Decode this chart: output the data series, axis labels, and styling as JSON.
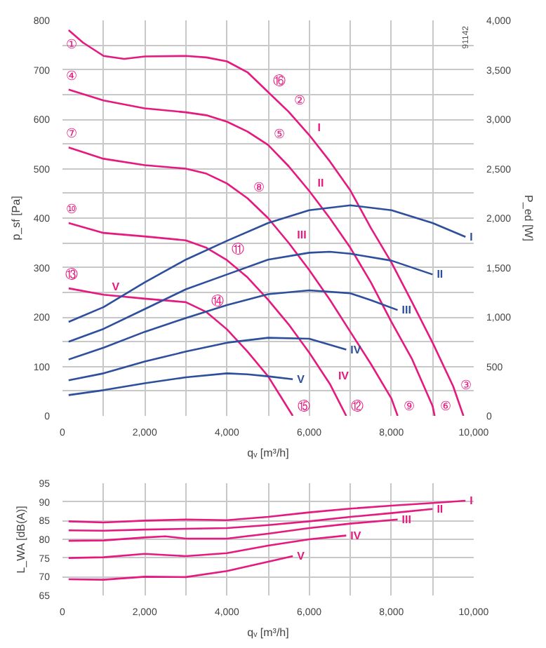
{
  "chart_data": [
    {
      "type": "line",
      "xlabel": "qᵥ [m³/h]",
      "ylabel": "p_sf [Pa]",
      "y2label": "P_ed [W]",
      "grid": true,
      "legend": false,
      "marker": "none",
      "line_style": "solid",
      "xlim": [
        0,
        10000
      ],
      "xticks": [
        0,
        {
          "value": 1000,
          "label": null
        },
        {
          "value": 2000,
          "label": "2,000"
        },
        {
          "value": 3000,
          "label": null
        },
        {
          "value": 4000,
          "label": "4,000"
        },
        {
          "value": 5000,
          "label": null
        },
        {
          "value": 6000,
          "label": "6,000"
        },
        {
          "value": 7000,
          "label": null
        },
        {
          "value": 8000,
          "label": "8,000"
        },
        {
          "value": 9000,
          "label": null
        },
        {
          "value": 10000,
          "label": "10,000"
        }
      ],
      "ylim": [
        0,
        800
      ],
      "yticks": [
        0,
        {
          "value": 50,
          "label": null
        },
        100,
        {
          "value": 150,
          "label": null
        },
        200,
        {
          "value": 250,
          "label": null
        },
        300,
        {
          "value": 350,
          "label": null
        },
        400,
        {
          "value": 450,
          "label": null
        },
        500,
        {
          "value": 550,
          "label": null
        },
        600,
        {
          "value": 650,
          "label": null
        },
        700,
        {
          "value": 750,
          "label": null
        },
        800
      ],
      "y2lim": [
        0,
        4000
      ],
      "y2ticks": [
        0,
        500,
        {
          "value": 1000,
          "label": "1,000"
        },
        {
          "value": 1500,
          "label": "1,500"
        },
        {
          "value": 2000,
          "label": "2,000"
        },
        {
          "value": 2500,
          "label": "2,500"
        },
        {
          "value": 3000,
          "label": "3,000"
        },
        {
          "value": 3500,
          "label": "3,500"
        },
        {
          "value": 4000,
          "label": "4,000"
        }
      ],
      "series": [
        {
          "name": "I",
          "color": "#e5197f",
          "x": [
            150,
            500,
            1000,
            1500,
            2000,
            3000,
            3500,
            4000,
            4500,
            5000,
            5500,
            6000,
            6500,
            7000,
            7500,
            8000,
            8500,
            9000,
            9500,
            9750
          ],
          "values": [
            780,
            755,
            728,
            722,
            727,
            728,
            725,
            717,
            695,
            655,
            615,
            568,
            515,
            456,
            380,
            310,
            230,
            148,
            60,
            0
          ]
        },
        {
          "name": "II",
          "color": "#e5197f",
          "x": [
            150,
            1000,
            2000,
            3000,
            3500,
            4000,
            4500,
            5000,
            5500,
            6000,
            6500,
            7000,
            7500,
            8000,
            8500,
            9000,
            9050
          ],
          "values": [
            660,
            638,
            622,
            614,
            608,
            595,
            575,
            548,
            505,
            455,
            400,
            340,
            270,
            190,
            115,
            20,
            0
          ]
        },
        {
          "name": "III",
          "color": "#e5197f",
          "x": [
            150,
            1000,
            2000,
            3000,
            3500,
            4000,
            4500,
            5000,
            5500,
            6000,
            6500,
            7000,
            7500,
            8000,
            8150
          ],
          "values": [
            543,
            520,
            507,
            500,
            490,
            470,
            440,
            400,
            350,
            295,
            235,
            170,
            105,
            35,
            0
          ]
        },
        {
          "name": "IV",
          "color": "#e5197f",
          "x": [
            150,
            1000,
            2000,
            3000,
            3500,
            4000,
            4500,
            5000,
            5500,
            6000,
            6500,
            6900
          ],
          "values": [
            390,
            370,
            363,
            355,
            340,
            315,
            280,
            235,
            185,
            128,
            65,
            0
          ]
        },
        {
          "name": "V",
          "color": "#e5197f",
          "x": [
            150,
            1000,
            2000,
            3000,
            3500,
            4000,
            4500,
            5000,
            5300,
            5600
          ],
          "values": [
            258,
            245,
            237,
            230,
            210,
            175,
            130,
            80,
            40,
            0
          ]
        },
        {
          "name": "I",
          "color": "#2e4f9c",
          "axis": "y2",
          "x": [
            150,
            1000,
            2000,
            3000,
            4000,
            5000,
            6000,
            7000,
            8000,
            9000,
            9800
          ],
          "values": [
            950,
            1100,
            1350,
            1580,
            1770,
            1950,
            2080,
            2130,
            2080,
            1950,
            1810
          ]
        },
        {
          "name": "II",
          "color": "#2e4f9c",
          "axis": "y2",
          "x": [
            150,
            1000,
            2000,
            3000,
            4000,
            5000,
            6000,
            6500,
            7000,
            8000,
            9000
          ],
          "values": [
            750,
            880,
            1080,
            1280,
            1430,
            1580,
            1650,
            1660,
            1640,
            1570,
            1430
          ]
        },
        {
          "name": "III",
          "color": "#2e4f9c",
          "axis": "y2",
          "x": [
            150,
            1000,
            2000,
            3000,
            4000,
            5000,
            6000,
            7000,
            7500,
            8150
          ],
          "values": [
            570,
            690,
            850,
            990,
            1120,
            1230,
            1270,
            1240,
            1170,
            1070
          ]
        },
        {
          "name": "IV",
          "color": "#2e4f9c",
          "axis": "y2",
          "x": [
            150,
            1000,
            2000,
            3000,
            4000,
            5000,
            6000,
            6900
          ],
          "values": [
            360,
            430,
            550,
            650,
            740,
            790,
            780,
            670
          ]
        },
        {
          "name": "V",
          "color": "#2e4f9c",
          "axis": "y2",
          "x": [
            150,
            1000,
            2000,
            3000,
            4000,
            4500,
            5000,
            5600
          ],
          "values": [
            210,
            260,
            330,
            390,
            430,
            420,
            400,
            370
          ]
        }
      ],
      "annotations": [
        "91142",
        {
          "text": "①",
          "x": 150,
          "y": 780
        },
        {
          "text": "④",
          "x": 150,
          "y": 660
        },
        {
          "text": "⑦",
          "x": 150,
          "y": 543
        },
        {
          "text": "⑩",
          "x": 150,
          "y": 390
        },
        {
          "text": "⑬",
          "x": 150,
          "y": 258
        },
        {
          "text": "②",
          "x": 5500,
          "y": 615
        },
        {
          "text": "⑤",
          "x": 5000,
          "y": 548
        },
        {
          "text": "⑧",
          "x": 4500,
          "y": 440
        },
        {
          "text": "⑪",
          "x": 4000,
          "y": 315
        },
        {
          "text": "⑭",
          "x": 3500,
          "y": 210
        },
        {
          "text": "③",
          "x": 9750,
          "y": 0
        },
        {
          "text": "⑥",
          "x": 9050,
          "y": 0
        },
        {
          "text": "⑨",
          "x": 8150,
          "y": 0
        },
        {
          "text": "⑫",
          "x": 6900,
          "y": 0
        },
        {
          "text": "⑮",
          "x": 5600,
          "y": 0
        },
        {
          "text": "⑯",
          "x": 5000,
          "y": 655
        }
      ]
    },
    {
      "type": "line",
      "xlabel": "qᵥ [m³/h]",
      "ylabel": "L_WA [dB(A)]",
      "grid": true,
      "legend": false,
      "marker": "none",
      "line_style": "solid",
      "xlim": [
        0,
        10000
      ],
      "xticks": [
        0,
        {
          "value": 1000,
          "label": null
        },
        {
          "value": 2000,
          "label": "2,000"
        },
        {
          "value": 3000,
          "label": null
        },
        {
          "value": 4000,
          "label": "4,000"
        },
        {
          "value": 5000,
          "label": null
        },
        {
          "value": 6000,
          "label": "6,000"
        },
        {
          "value": 7000,
          "label": null
        },
        {
          "value": 8000,
          "label": "8,000"
        },
        {
          "value": 9000,
          "label": null
        },
        {
          "value": 10000,
          "label": "10,000"
        }
      ],
      "ylim": [
        65,
        95
      ],
      "yticks": [
        65,
        70,
        75,
        80,
        85,
        90,
        95
      ],
      "series": [
        {
          "name": "I",
          "color": "#e5197f",
          "x": [
            150,
            1000,
            2000,
            3000,
            4000,
            5000,
            6000,
            7000,
            8000,
            9000,
            9800
          ],
          "values": [
            84.8,
            84.5,
            85,
            85.3,
            85.1,
            86,
            87.2,
            88.2,
            89,
            89.7,
            90.3
          ]
        },
        {
          "name": "II",
          "color": "#e5197f",
          "x": [
            150,
            1000,
            2000,
            3000,
            4000,
            5000,
            6000,
            7000,
            8000,
            9000
          ],
          "values": [
            82.4,
            82.3,
            82.6,
            82.8,
            83,
            83.8,
            84.8,
            86,
            87,
            88.1
          ]
        },
        {
          "name": "III",
          "color": "#e5197f",
          "x": [
            150,
            1000,
            2000,
            2500,
            3000,
            4000,
            5000,
            6000,
            7000,
            8150
          ],
          "values": [
            79.6,
            79.7,
            80.5,
            80.8,
            80.2,
            80.2,
            81.5,
            83,
            84.2,
            85.3
          ]
        },
        {
          "name": "IV",
          "color": "#e5197f",
          "x": [
            150,
            1000,
            2000,
            3000,
            4000,
            5000,
            6000,
            6900
          ],
          "values": [
            75,
            75.2,
            76.1,
            75.5,
            76.3,
            78.3,
            80,
            81
          ]
        },
        {
          "name": "V",
          "color": "#e5197f",
          "x": [
            150,
            1000,
            2000,
            3000,
            4000,
            5000,
            5600
          ],
          "values": [
            69.3,
            69.2,
            70,
            69.9,
            71.5,
            74,
            75.5
          ]
        }
      ]
    }
  ]
}
